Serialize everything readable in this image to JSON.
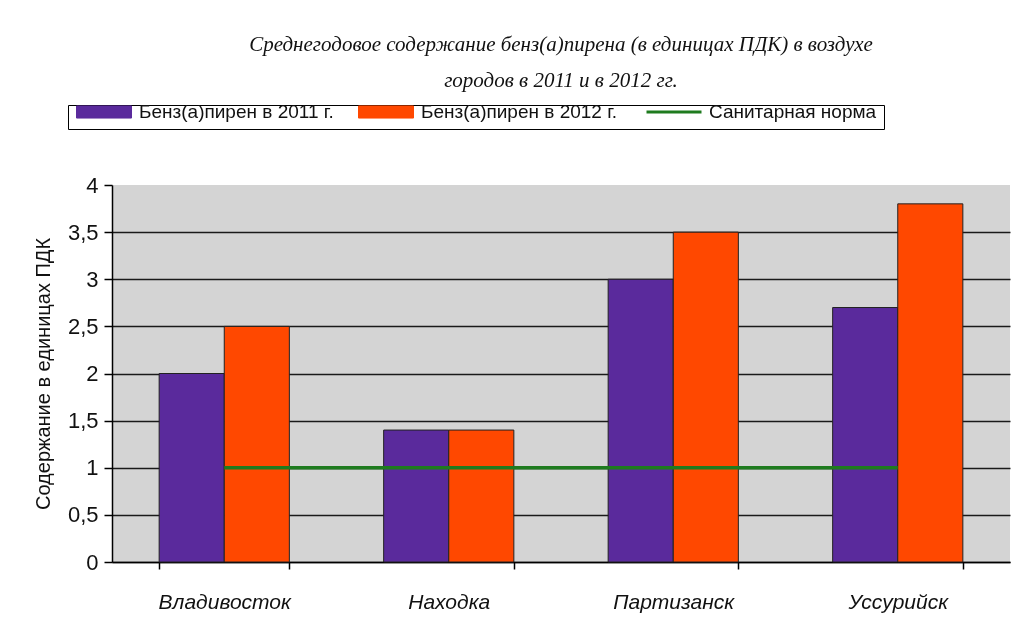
{
  "chart_data": {
    "type": "bar",
    "title": "Среднегодовое содержание бенз(а)пирена (в единицах ПДК) в воздухе городов в 2011 и в 2012 гг.",
    "ylabel": "Содержание в единицах ПДК",
    "categories": [
      "Владивосток",
      "Находка",
      "Партизанск",
      "Уссурийск"
    ],
    "series": [
      {
        "name": "Бенз(а)пирен в 2011 г.",
        "color": "#5a2a9c",
        "values": [
          2,
          1.4,
          3,
          2.7
        ]
      },
      {
        "name": "Бенз(а)пирен в 2012 г.",
        "color": "#ff4800",
        "values": [
          2.5,
          1.4,
          3.5,
          3.8
        ]
      },
      {
        "name": "Санитарная норма",
        "type": "line",
        "color": "#1e7b1e",
        "values": [
          1,
          1,
          1,
          1
        ]
      }
    ],
    "ylim": [
      0,
      4
    ],
    "yticks": [
      0,
      {
        "value": 0.5,
        "label": "0,5"
      },
      1,
      {
        "value": 1.5,
        "label": "1,5"
      },
      2,
      {
        "value": 2.5,
        "label": "2,5"
      },
      3,
      {
        "value": 3.5,
        "label": "3,5"
      },
      4
    ],
    "grid": "y",
    "legend": "top"
  }
}
